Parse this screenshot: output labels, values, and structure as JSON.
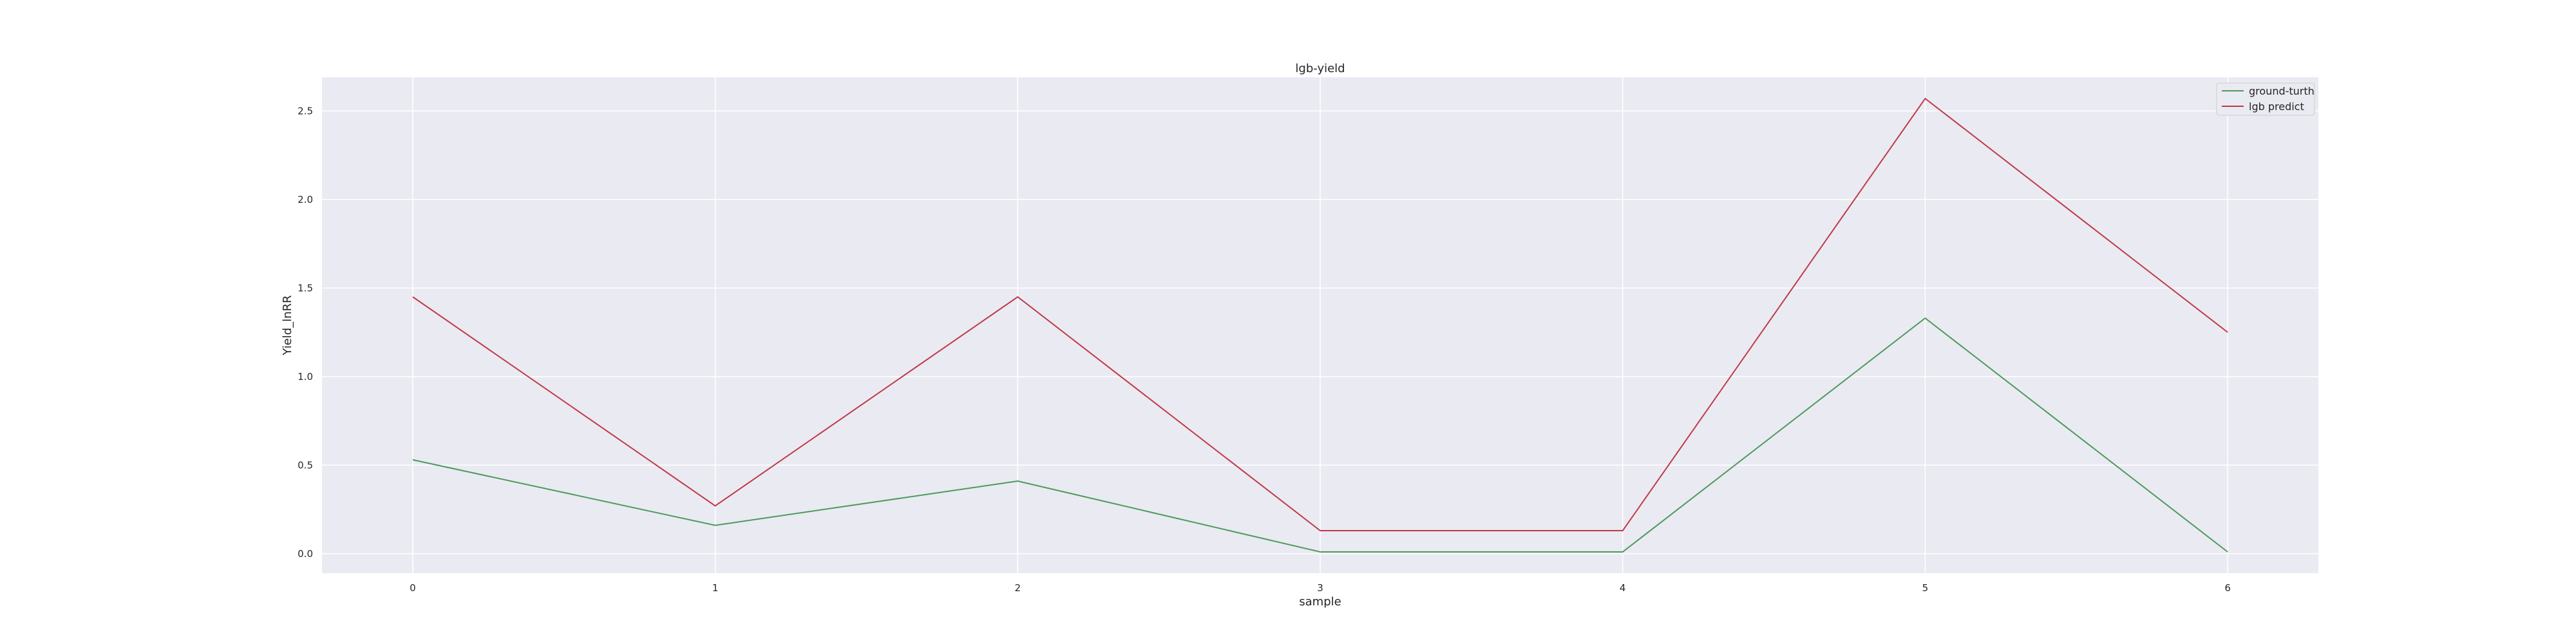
{
  "chart_data": {
    "type": "line",
    "title": "lgb-yield",
    "xlabel": "sample",
    "ylabel": "Yield_lnRR",
    "x": [
      0,
      1,
      2,
      3,
      4,
      5,
      6
    ],
    "xticks": [
      "0",
      "1",
      "2",
      "3",
      "4",
      "5",
      "6"
    ],
    "yticks": [
      "0.0",
      "0.5",
      "1.0",
      "1.5",
      "2.0",
      "2.5"
    ],
    "ytick_values": [
      0,
      0.5,
      1.0,
      1.5,
      2.0,
      2.5
    ],
    "xlim": [
      -0.3,
      6.3
    ],
    "ylim": [
      -0.11,
      2.69
    ],
    "grid": true,
    "legend_position": "top-right",
    "series": [
      {
        "name": "ground-turth",
        "color": "#4c9a5c",
        "values": [
          0.53,
          0.16,
          0.41,
          0.01,
          0.01,
          1.33,
          0.01
        ]
      },
      {
        "name": "lgb predict",
        "color": "#c03a48",
        "values": [
          1.45,
          0.27,
          1.45,
          0.13,
          0.13,
          2.57,
          1.25
        ]
      }
    ]
  },
  "style": {
    "plot_background": "#eaeaf2",
    "grid_color": "#ffffff"
  }
}
